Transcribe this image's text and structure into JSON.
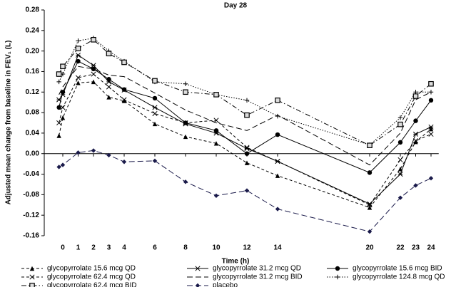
{
  "chart_data": {
    "type": "line",
    "title": "Day 28",
    "x_label": "Time (h)",
    "y_label": "Adjusted mean change from baseline in FEV₁ (L)",
    "x": [
      -0.25,
      0,
      1,
      2,
      3,
      4,
      6,
      8,
      10,
      12,
      14,
      20,
      22,
      23,
      24
    ],
    "xlim": [
      -1,
      24.5
    ],
    "xticks": [
      0,
      1,
      2,
      3,
      4,
      6,
      8,
      10,
      12,
      14,
      20,
      22,
      23,
      24
    ],
    "ylim": [
      -0.16,
      0.28
    ],
    "yticks": [
      0.28,
      0.24,
      {
        "value": 0.2,
        "label": "0.20"
      },
      0.16,
      0.12,
      0.08,
      0.04,
      {
        "value": 0,
        "label": "0.00"
      },
      -0.04,
      -0.08,
      -0.12,
      -0.16
    ],
    "series": [
      {
        "name": "glycopyrrolate 15.6 mcg QD",
        "color": "#000000",
        "dash": "dashed",
        "marker": "triangle",
        "values": [
          0.035,
          0.07,
          0.138,
          0.14,
          0.11,
          0.103,
          0.058,
          0.033,
          0.02,
          -0.018,
          -0.043,
          -0.105,
          -0.03,
          0.023,
          0.048
        ]
      },
      {
        "name": "glycopyrrolate 31.2 mcg QD",
        "color": "#000000",
        "dash": "solid",
        "marker": "asterisk",
        "values": [
          0.105,
          0.115,
          0.192,
          0.172,
          0.14,
          0.124,
          0.09,
          0.058,
          0.04,
          0.01,
          -0.015,
          -0.098,
          -0.04,
          0.038,
          0.052
        ]
      },
      {
        "name": "glycopyrrolate 15.6 mcg BID",
        "color": "#000000",
        "dash": "solid",
        "marker": "circle",
        "values": [
          0.09,
          0.12,
          0.18,
          0.165,
          0.145,
          0.125,
          0.108,
          0.06,
          0.045,
          0.0,
          0.037,
          -0.037,
          0.022,
          0.064,
          0.104
        ]
      },
      {
        "name": "glycopyrrolate 62.4 mcg QD",
        "color": "#000000",
        "dash": "dashed",
        "marker": "x",
        "values": [
          0.06,
          0.09,
          0.148,
          0.155,
          0.13,
          0.105,
          0.078,
          0.06,
          0.065,
          0.012,
          -0.015,
          -0.1,
          -0.012,
          0.025,
          0.038
        ]
      },
      {
        "name": "glycopyrrolate 31.2 mcg BID",
        "color": "#000000",
        "dash": "longdash",
        "marker": "none",
        "values": [
          0.115,
          0.13,
          0.17,
          0.165,
          0.153,
          0.15,
          0.118,
          0.085,
          0.06,
          0.045,
          0.075,
          -0.022,
          0.04,
          0.105,
          0.12
        ]
      },
      {
        "name": "glycopyrrolate 124.8 mcg QD",
        "color": "#000000",
        "dash": "dotted",
        "marker": "plus",
        "values": [
          0.14,
          0.155,
          0.22,
          0.225,
          0.2,
          0.18,
          0.14,
          0.136,
          0.115,
          0.104,
          0.073,
          0.017,
          0.07,
          0.12,
          0.12
        ]
      },
      {
        "name": "glycopyrrolate 62.4 mcg BID",
        "color": "#000000",
        "dash": "dashdot",
        "marker": "square",
        "values": [
          0.155,
          0.17,
          0.205,
          0.222,
          0.195,
          0.178,
          0.142,
          0.12,
          0.115,
          0.075,
          0.104,
          0.016,
          0.057,
          0.112,
          0.136
        ]
      },
      {
        "name": "placebo",
        "color": "#1a1a4a",
        "dash": "longdash",
        "marker": "diamond",
        "values": [
          -0.026,
          -0.022,
          0.002,
          0.006,
          -0.003,
          -0.016,
          -0.014,
          -0.055,
          -0.082,
          -0.072,
          -0.108,
          -0.152,
          -0.086,
          -0.062,
          -0.048
        ]
      }
    ]
  }
}
